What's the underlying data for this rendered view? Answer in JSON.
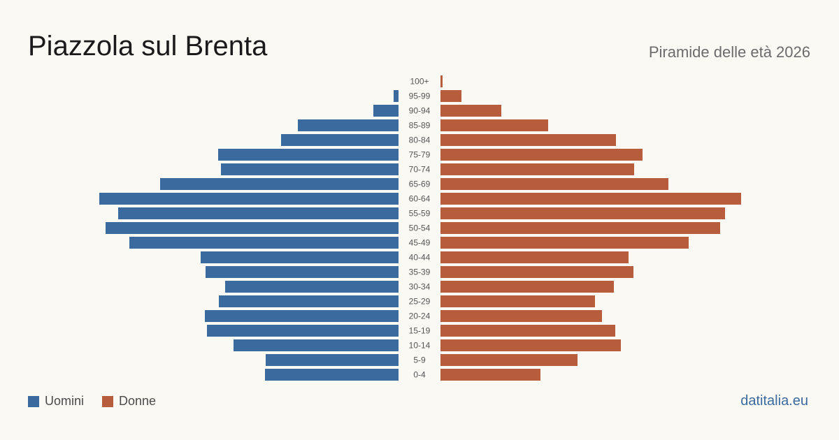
{
  "header": {
    "title": "Piazzola sul Brenta",
    "subtitle": "Piramide delle età 2026"
  },
  "legend": {
    "male": "Uomini",
    "female": "Donne"
  },
  "footer": {
    "brand": "datitalia.eu"
  },
  "colors": {
    "male": "#3a6a9e",
    "female": "#b85d3c",
    "label": "#555555",
    "background": "#fbf9f4"
  },
  "chart_data": {
    "type": "bar",
    "orientation": "horizontal-pyramid",
    "title": "Piazzola sul Brenta",
    "subtitle": "Piramide delle età 2026",
    "categories": [
      "100+",
      "95-99",
      "90-94",
      "85-89",
      "80-84",
      "75-79",
      "70-74",
      "65-69",
      "60-64",
      "55-59",
      "50-54",
      "45-49",
      "40-44",
      "35-39",
      "30-34",
      "25-29",
      "20-24",
      "15-19",
      "10-14",
      "5-9",
      "0-4"
    ],
    "series": [
      {
        "name": "Uomini",
        "values": [
          0,
          7,
          36,
          144,
          168,
          258,
          254,
          341,
          428,
          401,
          419,
          385,
          283,
          276,
          248,
          257,
          277,
          274,
          236,
          190,
          191
        ]
      },
      {
        "name": "Donne",
        "values": [
          3,
          30,
          87,
          154,
          251,
          289,
          277,
          326,
          430,
          407,
          400,
          355,
          269,
          276,
          248,
          221,
          231,
          250,
          258,
          196,
          143
        ]
      }
    ],
    "xlim": [
      0,
      440
    ],
    "legend_position": "bottom-left",
    "grid": false
  }
}
